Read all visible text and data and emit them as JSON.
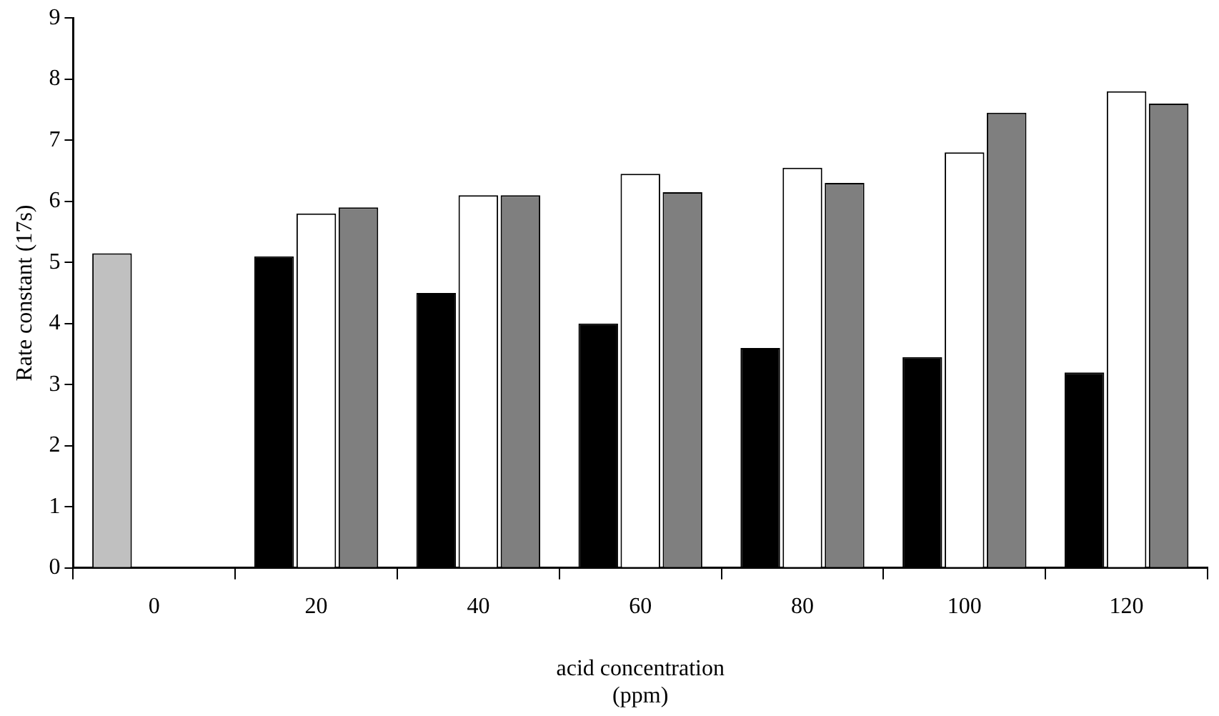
{
  "chart_data": {
    "type": "bar",
    "xlabel": "acid concentration\n(ppm)",
    "ylabel": "Rate constant (17s)",
    "categories": [
      "0",
      "20",
      "40",
      "60",
      "80",
      "100",
      "120"
    ],
    "series": [
      {
        "colors": [
          "#c0c0c0",
          "#000000",
          "#000000",
          "#000000",
          "#000000",
          "#000000",
          "#000000"
        ],
        "values": [
          5.15,
          5.1,
          4.5,
          4.0,
          3.6,
          3.45,
          3.2
        ]
      },
      {
        "color": "#ffffff",
        "values": [
          null,
          5.8,
          6.1,
          6.45,
          6.55,
          6.8,
          7.8
        ]
      },
      {
        "color": "#7f7f7f",
        "values": [
          null,
          5.9,
          6.1,
          6.15,
          6.3,
          7.45,
          7.6
        ]
      }
    ],
    "ylim": [
      0,
      9
    ],
    "yticks": [
      0,
      1,
      2,
      3,
      4,
      5,
      6,
      7,
      8,
      9
    ],
    "grid": false,
    "legend": false
  }
}
